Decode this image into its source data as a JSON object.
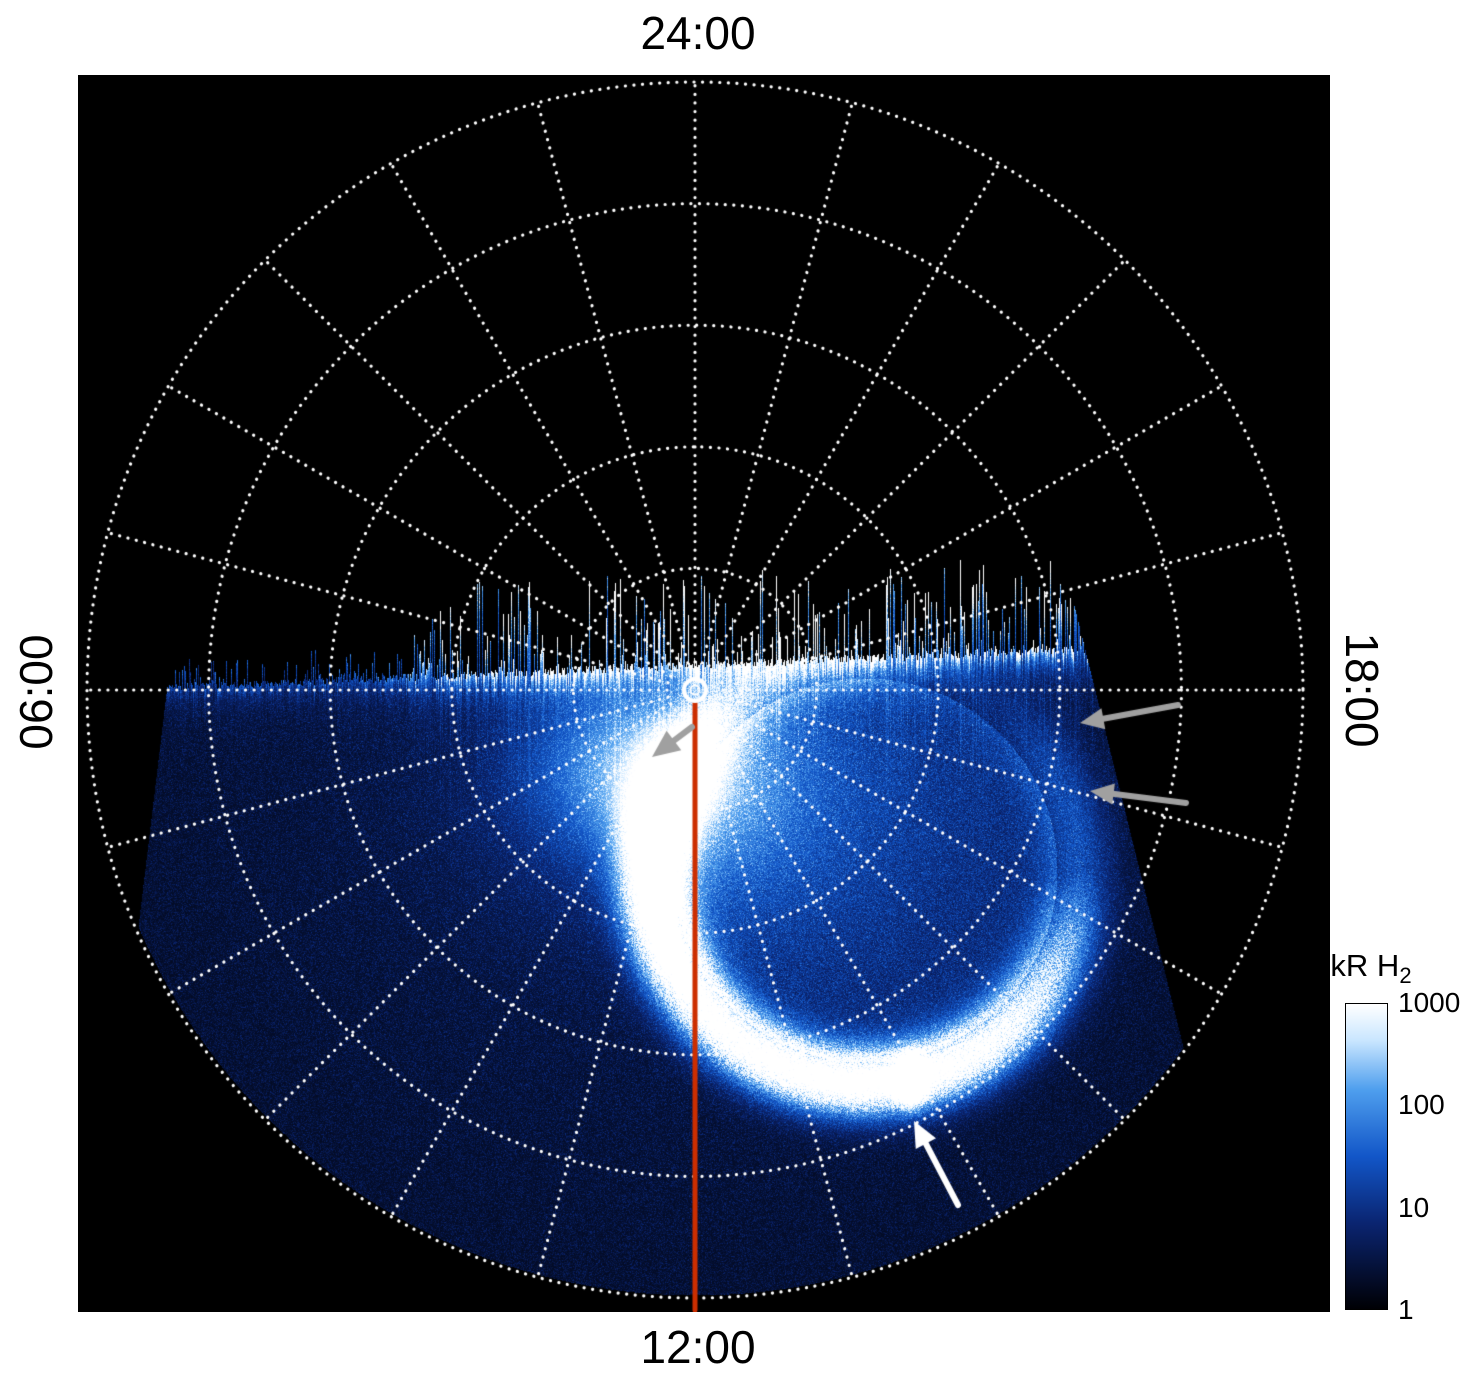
{
  "figure": {
    "labels": {
      "top": "24:00",
      "bottom": "12:00",
      "left": "06:00",
      "right": "18:00"
    },
    "colorbar": {
      "title": "kR H",
      "title_sub": "2",
      "ticks": [
        "1000",
        "100",
        "10",
        "1"
      ]
    }
  },
  "chart_data": {
    "type": "heatmap",
    "projection": "polar",
    "description": "Polar (local-time) projection of auroral H2 emission on a black background with a white dotted local-time/colatitude grid. Diffuse blue emission with a bright auroral oval fills the sector between ~06:00 and ~18:00 through 12:00.",
    "angle_labels": [
      {
        "label": "24:00",
        "position": "top"
      },
      {
        "label": "06:00",
        "position": "left"
      },
      {
        "label": "12:00",
        "position": "bottom"
      },
      {
        "label": "18:00",
        "position": "right"
      }
    ],
    "grid": {
      "radial_circles": 5,
      "spokes": 24,
      "spoke_interval_hours": 1,
      "style": "dotted",
      "color": "#ffffff"
    },
    "colorbar": {
      "label": "kR H2",
      "scale": "log",
      "min": 1,
      "max": 1000,
      "tick_values": [
        1000,
        100,
        10,
        1
      ]
    },
    "colormap_stops": [
      {
        "t": 0.0,
        "color": "#000004"
      },
      {
        "t": 0.28,
        "color": "#0a2470"
      },
      {
        "t": 0.5,
        "color": "#1256c8"
      },
      {
        "t": 0.72,
        "color": "#4f9fee"
      },
      {
        "t": 0.88,
        "color": "#c9e6ff"
      },
      {
        "t": 1.0,
        "color": "#ffffff"
      }
    ],
    "features": {
      "noon_meridian_line": {
        "color": "#cc2e00",
        "from": "pole (center)",
        "to": "12:00 limb"
      },
      "center_marker": {
        "shape": "circle-outline",
        "color": "#ffffff"
      },
      "emission_sector": "lower half of disk between ~06:00 and ~18:00, bounded by slanted field-of-view edges",
      "auroral_oval": {
        "shape": "ring",
        "brightness": "bright white arc, brightest on dawn/noon side and equatorward edge, dim gap toward upper right",
        "interior": "diffuse mottled blue"
      },
      "limb_band": "bright white streaky emission band along the dawn-dusk terminator (top edge of sector)",
      "arrows": [
        {
          "color": "#a0a0a0",
          "points_to": "bright limb emission near 18:00",
          "x": 0.71,
          "y": 0.47
        },
        {
          "color": "#a0a0a0",
          "points_to": "outer emission edge near 18:00",
          "x": 0.72,
          "y": 0.53
        },
        {
          "color": "#a0a0a0",
          "points_to": "poleward edge of main oval near noon-dawn",
          "x": 0.4,
          "y": 0.49
        },
        {
          "color": "#ffffff",
          "points_to": "equatorward diffuse emission south of the oval",
          "x": 0.6,
          "y": 0.84
        }
      ]
    }
  }
}
